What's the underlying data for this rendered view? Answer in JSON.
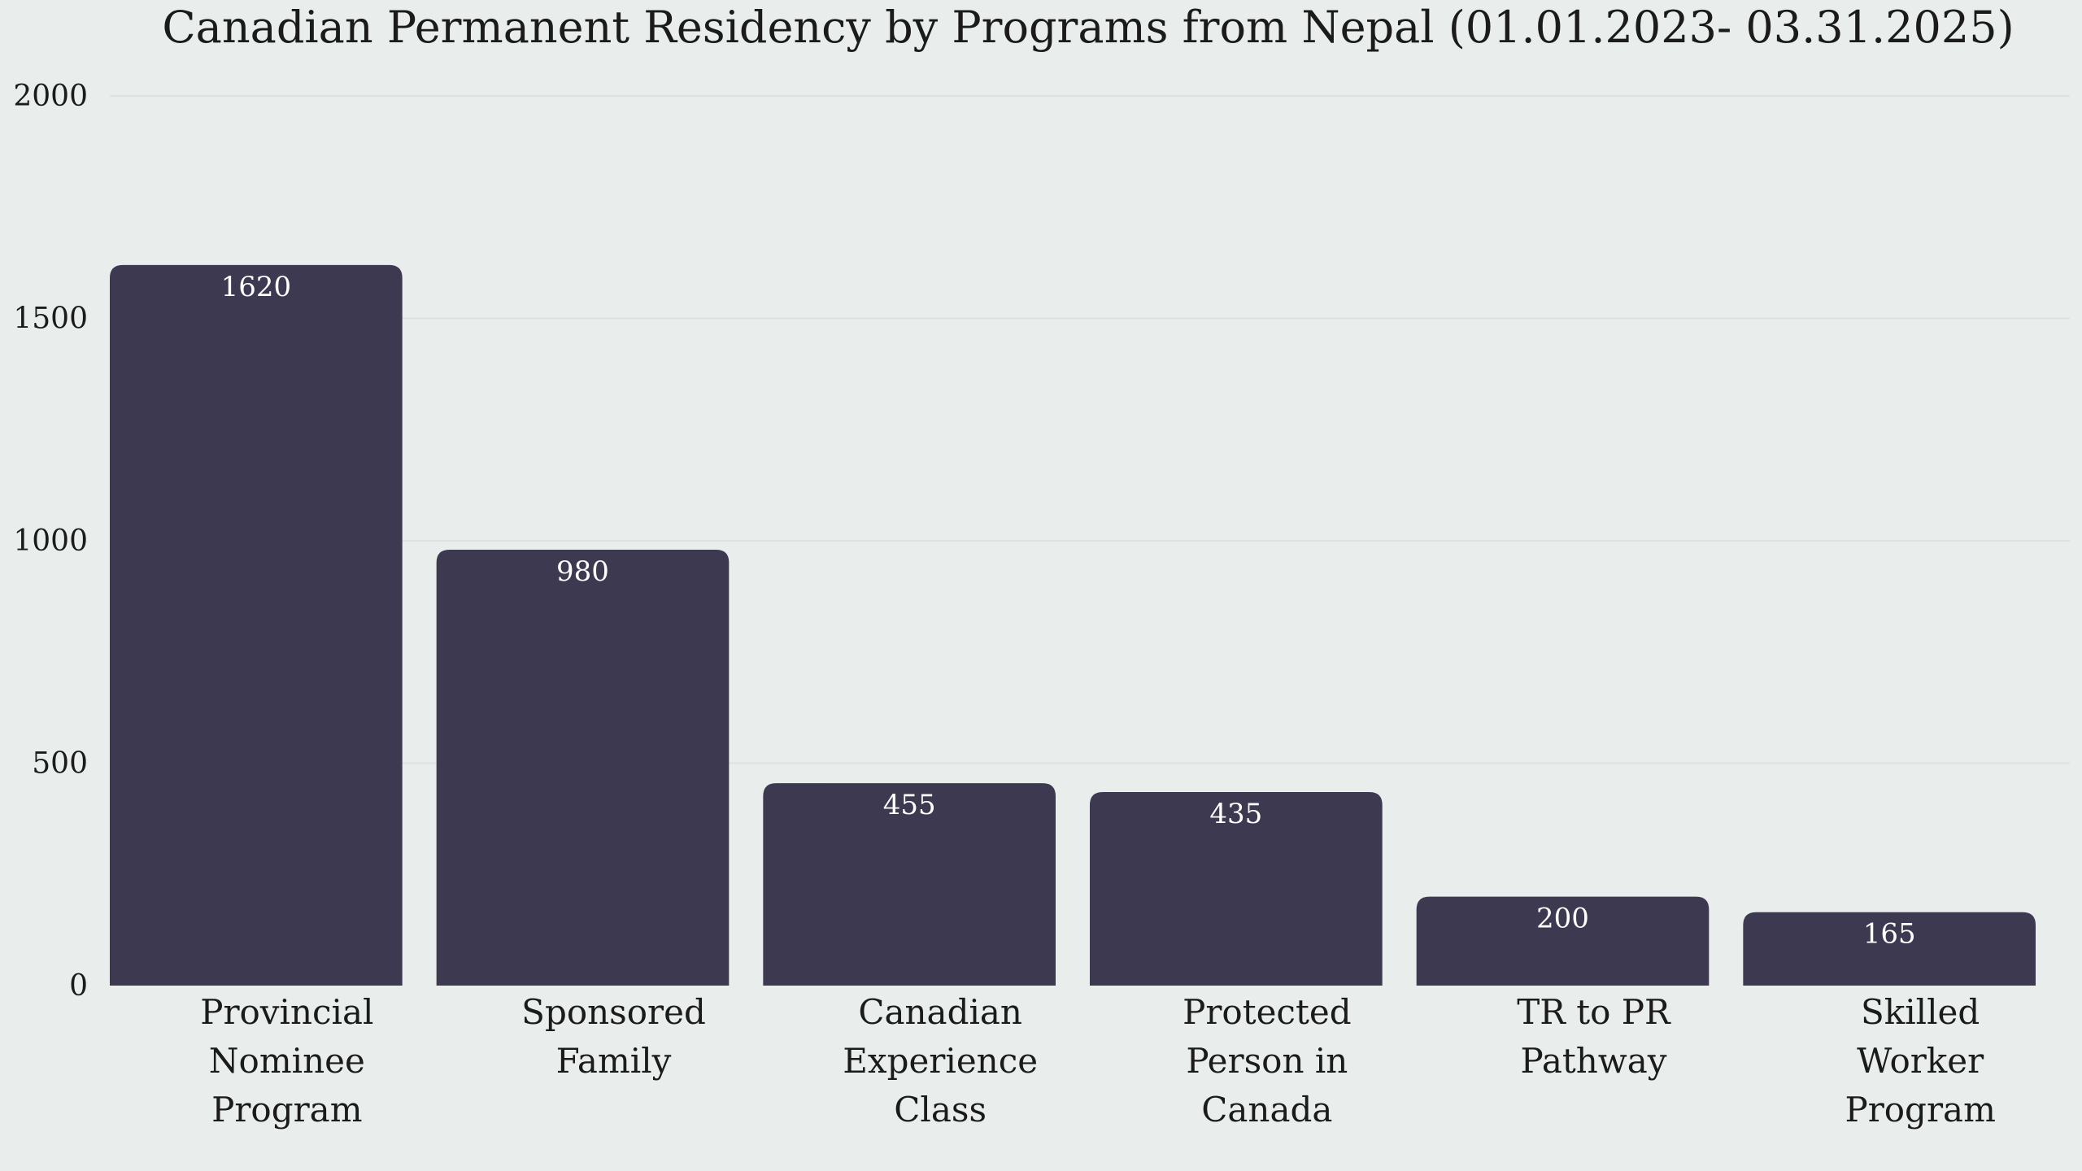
{
  "chart_data": {
    "type": "bar",
    "title": "Canadian Permanent Residency by Programs from Nepal (01.01.2023- 03.31.2025)",
    "xlabel": "",
    "ylabel": "",
    "categories": [
      "Provincial Nominee Program",
      "Sponsored Family",
      "Canadian Experience Class",
      "Protected Person in Canada",
      "TR to PR Pathway",
      "Skilled Worker Program"
    ],
    "category_lines": [
      [
        "Provincial",
        "Nominee",
        "Program"
      ],
      [
        "Sponsored",
        "Family"
      ],
      [
        "Canadian",
        "Experience",
        "Class"
      ],
      [
        "Protected",
        "Person in",
        "Canada"
      ],
      [
        "TR to PR",
        "Pathway"
      ],
      [
        "Skilled",
        "Worker",
        "Program"
      ]
    ],
    "values": [
      1620,
      980,
      455,
      435,
      200,
      165
    ],
    "data_labels": [
      "1620",
      "980",
      "455",
      "435",
      "200",
      "165"
    ],
    "ylim": [
      0,
      2000
    ],
    "yticks": [
      0,
      500,
      1000,
      1500,
      2000
    ],
    "ytick_labels": [
      "0",
      "500",
      "1000",
      "1500",
      "2000"
    ],
    "grid": true,
    "legend": "none",
    "colors": {
      "bar": "#3d3950",
      "background": "#e9eeec",
      "grid": "#dde3e1",
      "text": "#1b1b1b",
      "value_label": "#ffffff"
    }
  }
}
